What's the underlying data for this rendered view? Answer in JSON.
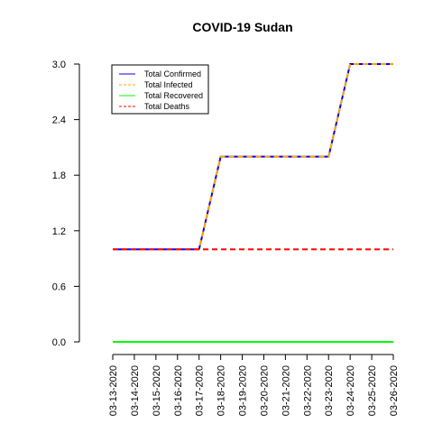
{
  "chart_data": {
    "type": "line",
    "title": "COVID-19 Sudan",
    "xlabel": "",
    "ylabel": "",
    "categories": [
      "03-13-2020",
      "03-14-2020",
      "03-15-2020",
      "03-16-2020",
      "03-17-2020",
      "03-18-2020",
      "03-19-2020",
      "03-20-2020",
      "03-21-2020",
      "03-22-2020",
      "03-23-2020",
      "03-24-2020",
      "03-25-2020",
      "03-26-2020"
    ],
    "yticks": [
      "0.0",
      "0.6",
      "1.2",
      "1.8",
      "2.4",
      "3.0"
    ],
    "ylim": [
      0,
      3
    ],
    "grid": false,
    "legend_position": "top-left",
    "series": [
      {
        "name": "Total Confirmed",
        "color": "#0000ff",
        "dash": "solid",
        "values": [
          1,
          1,
          1,
          1,
          1,
          2,
          2,
          2,
          2,
          2,
          2,
          3,
          3,
          3
        ]
      },
      {
        "name": "Total Infected",
        "color": "#ffa500",
        "dash": "dashed",
        "values": [
          1,
          1,
          1,
          1,
          1,
          2,
          2,
          2,
          2,
          2,
          2,
          3,
          3,
          3
        ]
      },
      {
        "name": "Total Recovered",
        "color": "#00ff00",
        "dash": "solid",
        "values": [
          0,
          0,
          0,
          0,
          0,
          0,
          0,
          0,
          0,
          0,
          0,
          0,
          0,
          0
        ]
      },
      {
        "name": "Total Deaths",
        "color": "#ff0000",
        "dash": "dashed",
        "values": [
          1,
          1,
          1,
          1,
          1,
          1,
          1,
          1,
          1,
          1,
          1,
          1,
          1,
          1
        ]
      }
    ]
  }
}
